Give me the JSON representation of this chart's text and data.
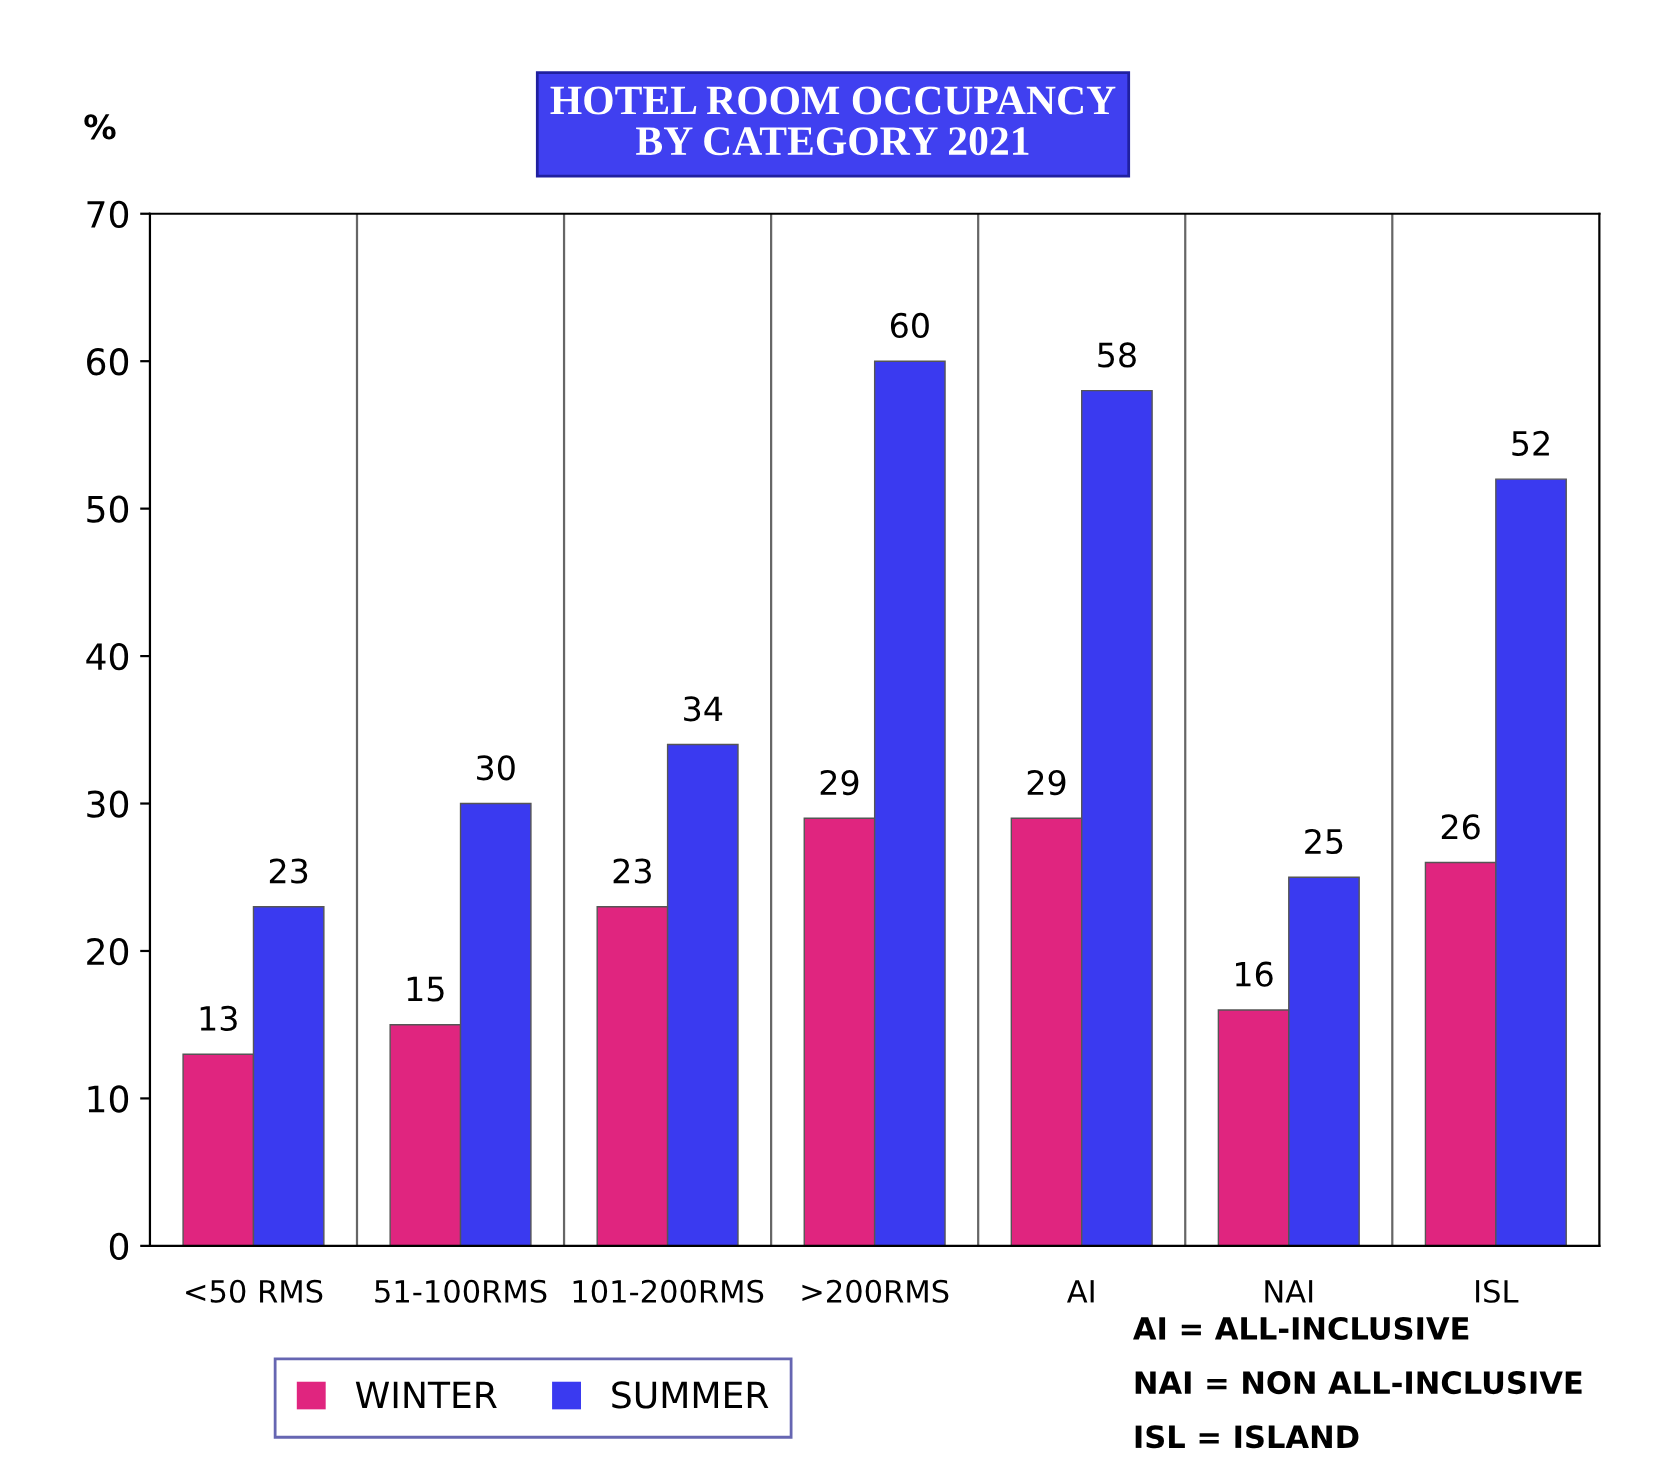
{
  "chart_data": {
    "type": "bar",
    "title": "HOTEL ROOM OCCUPANCY\nBY CATEGORY 2021",
    "ylabel": "%",
    "categories": [
      "<50 RMS",
      "51-100RMS",
      "101-200RMS",
      ">200RMS",
      "AI",
      "NAI",
      "ISL"
    ],
    "series": [
      {
        "name": "WINTER",
        "color": "#e0257f",
        "values": [
          13,
          15,
          23,
          29,
          29,
          16,
          26
        ]
      },
      {
        "name": "SUMMER",
        "color": "#3a3af0",
        "values": [
          23,
          30,
          34,
          60,
          58,
          25,
          52
        ]
      }
    ],
    "ylim": [
      0,
      70
    ],
    "yticks": [
      0,
      10,
      20,
      30,
      40,
      50,
      60,
      70
    ],
    "grid": "x",
    "legend": "bottom",
    "data_labels": true,
    "annotations": [
      "AI = ALL-INCLUSIVE",
      "NAI = NON ALL-INCLUSIVE",
      "ISL = ISLAND"
    ]
  }
}
